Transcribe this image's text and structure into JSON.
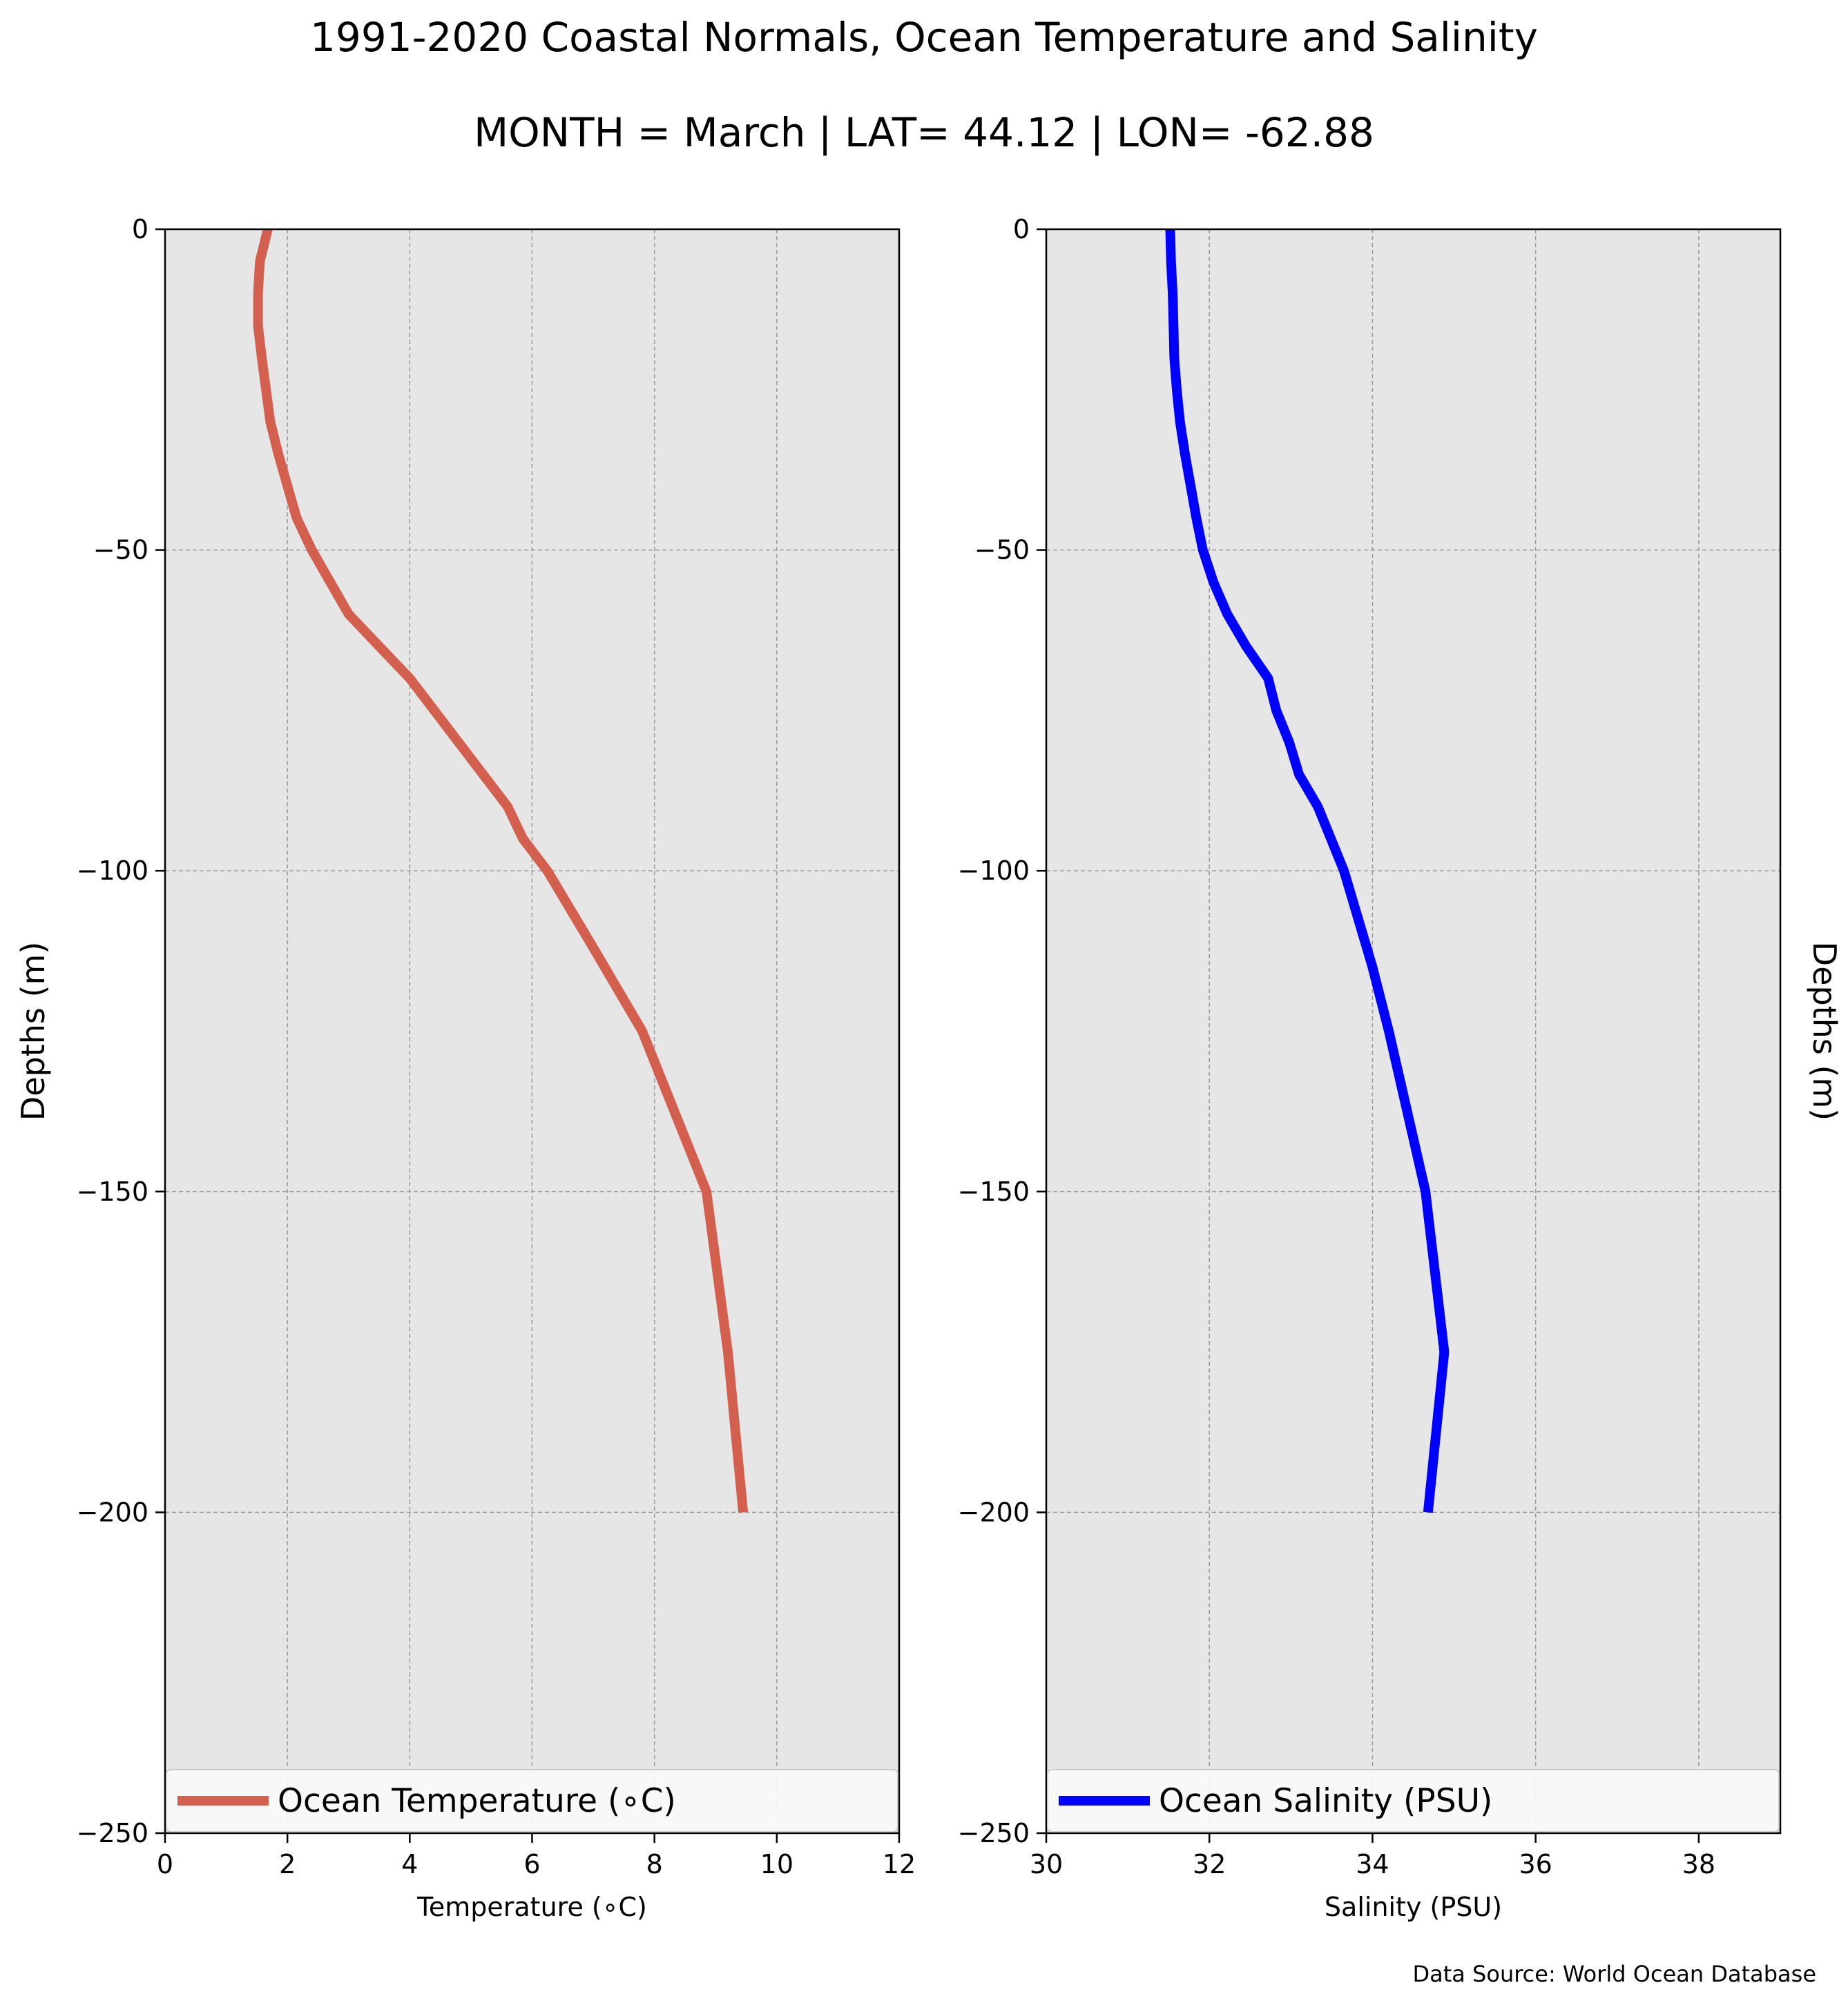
{
  "title": "1991-2020 Coastal Normals, Ocean Temperature and Salinity",
  "subtitle": "MONTH = March | LAT= 44.12 | LON= -62.88",
  "source": "Data Source: World Ocean Database",
  "chart_data": [
    {
      "type": "line",
      "xlabel": "Temperature (∘C)",
      "ylabel": "Depths (m)",
      "xlim": [
        0,
        12
      ],
      "ylim": [
        -250,
        0
      ],
      "xticks": [
        "0",
        "2",
        "4",
        "6",
        "8",
        "10",
        "12"
      ],
      "yticks": [
        "0",
        "−50",
        "−100",
        "−150",
        "−200",
        "−250"
      ],
      "grid": true,
      "legend_position": "bottom",
      "series": [
        {
          "name": "Ocean Temperature (∘C)",
          "color": "#d35f4f",
          "x": [
            1.68,
            1.55,
            1.52,
            1.52,
            1.58,
            1.65,
            1.72,
            1.85,
            2.0,
            2.15,
            2.4,
            2.7,
            3.0,
            3.5,
            4.0,
            4.4,
            4.8,
            5.2,
            5.6,
            5.85,
            6.25,
            7.0,
            7.8,
            8.85,
            9.2,
            9.45
          ],
          "y": [
            0,
            -5,
            -10,
            -15,
            -20,
            -25,
            -30,
            -35,
            -40,
            -45,
            -50,
            -55,
            -60,
            -65,
            -70,
            -75,
            -80,
            -85,
            -90,
            -95,
            -100,
            -112,
            -125,
            -150,
            -175,
            -200
          ]
        }
      ]
    },
    {
      "type": "line",
      "xlabel": "Salinity (PSU)",
      "ylabel": "Depths (m)",
      "xlim": [
        30,
        39
      ],
      "ylim": [
        -250,
        0
      ],
      "xticks": [
        "30",
        "32",
        "34",
        "36",
        "38"
      ],
      "yticks": [
        "0",
        "−50",
        "−100",
        "−150",
        "−200",
        "−250"
      ],
      "grid": true,
      "legend_position": "bottom",
      "series": [
        {
          "name": "Ocean Salinity (PSU)",
          "color": "#0000ff",
          "x": [
            31.52,
            31.53,
            31.55,
            31.56,
            31.57,
            31.6,
            31.64,
            31.7,
            31.77,
            31.84,
            31.92,
            32.05,
            32.22,
            32.45,
            32.72,
            32.82,
            32.98,
            33.1,
            33.33,
            33.65,
            34.0,
            34.2,
            34.65,
            34.88,
            34.68
          ],
          "y": [
            0,
            -5,
            -10,
            -15,
            -20,
            -25,
            -30,
            -35,
            -40,
            -45,
            -50,
            -55,
            -60,
            -65,
            -70,
            -75,
            -80,
            -85,
            -90,
            -100,
            -115,
            -125,
            -150,
            -175,
            -200
          ]
        }
      ]
    }
  ]
}
